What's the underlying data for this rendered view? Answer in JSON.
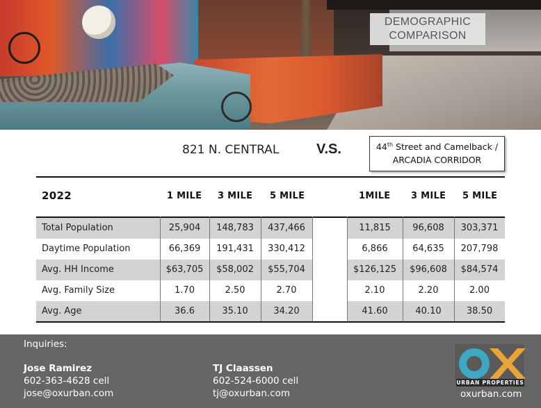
{
  "header": {
    "title_line1": "DEMOGRAPHIC",
    "title_line2": "COMPARISON"
  },
  "comparison": {
    "left_location": "821 N. CENTRAL",
    "vs_label": "V.S.",
    "right_location_line1_num": "44",
    "right_location_line1_sup": "th",
    "right_location_line1_rest": " Street and Camelback /",
    "right_location_line2": "ARCADIA CORRIDOR"
  },
  "table": {
    "year": "2022",
    "left_columns": [
      "1 MILE",
      "3 MILE",
      "5 MILE"
    ],
    "right_columns": [
      "1MILE",
      "3 MILE",
      "5 MILE"
    ],
    "rows": [
      {
        "label": "Total Population",
        "left": [
          "25,904",
          "148,783",
          "437,466"
        ],
        "right": [
          "11,815",
          "96,608",
          "303,371"
        ]
      },
      {
        "label": "Daytime Population",
        "left": [
          "66,369",
          "191,431",
          "330,412"
        ],
        "right": [
          "6,866",
          "64,635",
          "207,798"
        ]
      },
      {
        "label": "Avg. HH Income",
        "left": [
          "$63,705",
          "$58,002",
          "$55,704"
        ],
        "right": [
          "$126,125",
          "$96,608",
          "$84,574"
        ]
      },
      {
        "label": "Avg. Family Size",
        "left": [
          "1.70",
          "2.50",
          "2.70"
        ],
        "right": [
          "2.10",
          "2.20",
          "2.00"
        ]
      },
      {
        "label": "Avg. Age",
        "left": [
          "36.6",
          "35.10",
          "34.20"
        ],
        "right": [
          "41.60",
          "40.10",
          "38.50"
        ]
      }
    ]
  },
  "footer": {
    "inquiries_label": "Inquiries:",
    "contact1": {
      "name": "Jose Ramirez",
      "phone": "602-363-4628 cell",
      "email": "jose@oxurban.com"
    },
    "contact2": {
      "name": "TJ Claassen",
      "phone": "602-524-6000 cell",
      "email": "tj@oxurban.com"
    },
    "logo_text": "URBAN PROPERTIES",
    "website": "oxurban.com",
    "logo_colors": {
      "o": "#3ea8c4",
      "x": "#e8a33a"
    }
  }
}
